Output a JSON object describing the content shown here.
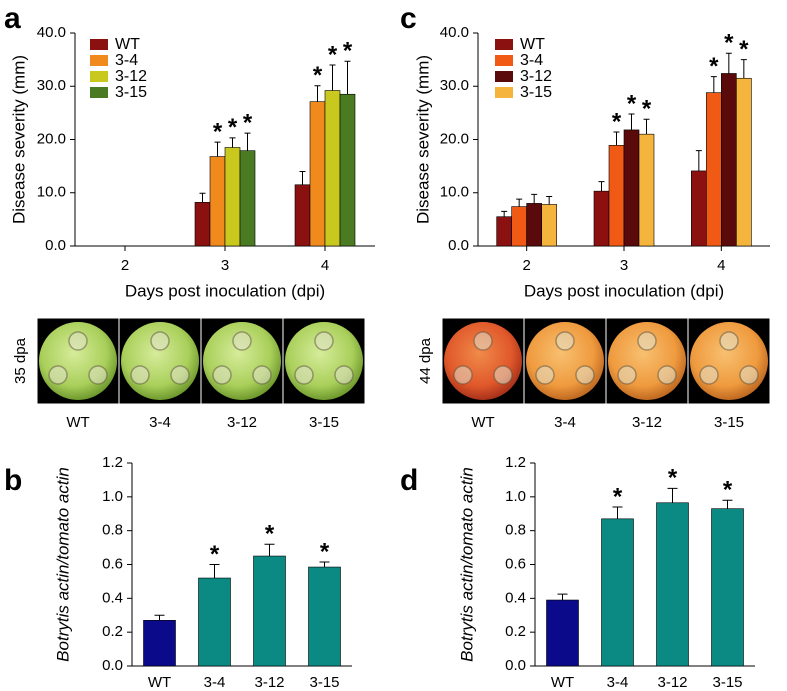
{
  "chart_data": [
    {
      "type": "grouped_bar",
      "panel_label": "a",
      "y_label": "Disease severity (mm)",
      "x_label": "Days post inoculation (dpi)",
      "categories": [
        "2",
        "3",
        "4"
      ],
      "ylim": [
        0,
        40
      ],
      "yticks": [
        {
          "value": 0,
          "label": "0.0"
        },
        {
          "value": 10,
          "label": "10.0"
        },
        {
          "value": 20,
          "label": "20.0"
        },
        {
          "value": 30,
          "label": "30.0"
        },
        {
          "value": 40,
          "label": "40.0"
        }
      ],
      "series": [
        {
          "name": "WT",
          "color": "#8b1010",
          "values": [
            null,
            8.2,
            11.5
          ],
          "errors": [
            null,
            1.7,
            2.5
          ]
        },
        {
          "name": "3-4",
          "color": "#f08a1c",
          "values": [
            null,
            16.8,
            27.1
          ],
          "errors": [
            null,
            2.7,
            3.0
          ],
          "significance": [
            null,
            "*",
            "*"
          ]
        },
        {
          "name": "3-12",
          "color": "#c8c81e",
          "values": [
            null,
            18.5,
            29.2
          ],
          "errors": [
            null,
            1.8,
            4.8
          ],
          "significance": [
            null,
            "*",
            "*"
          ]
        },
        {
          "name": "3-15",
          "color": "#4a7a22",
          "values": [
            null,
            17.9,
            28.5
          ],
          "errors": [
            null,
            3.3,
            6.2
          ],
          "significance": [
            null,
            "*",
            "*"
          ]
        }
      ]
    },
    {
      "type": "bar",
      "panel_label": "b",
      "y_label": "Botrytis actin/tomato actin",
      "categories": [
        "WT",
        "3-4",
        "3-12",
        "3-15"
      ],
      "values": [
        0.27,
        0.52,
        0.65,
        0.585
      ],
      "errors": [
        0.03,
        0.08,
        0.07,
        0.03
      ],
      "colors": [
        "#0a0a8a",
        "#0a8a82",
        "#0a8a82",
        "#0a8a82"
      ],
      "significance": [
        null,
        "*",
        "*",
        "*"
      ],
      "ylim": [
        0,
        1.2
      ],
      "yticks": [
        {
          "value": 0,
          "label": "0.0"
        },
        0.2,
        0.4,
        0.6,
        0.8,
        {
          "value": 1,
          "label": "1.0"
        },
        1.2
      ]
    },
    {
      "type": "grouped_bar",
      "panel_label": "c",
      "y_label": "Disease severity (mm)",
      "x_label": "Days post inoculation (dpi)",
      "categories": [
        "2",
        "3",
        "4"
      ],
      "ylim": [
        0,
        40
      ],
      "yticks": [
        {
          "value": 0,
          "label": "0.0"
        },
        {
          "value": 10,
          "label": "10.0"
        },
        {
          "value": 20,
          "label": "20.0"
        },
        {
          "value": 30,
          "label": "30.0"
        },
        {
          "value": 40,
          "label": "40.0"
        }
      ],
      "series": [
        {
          "name": "WT",
          "color": "#8b1010",
          "values": [
            5.5,
            10.3,
            14.1
          ],
          "errors": [
            1.0,
            1.8,
            3.8
          ]
        },
        {
          "name": "3-4",
          "color": "#f05a14",
          "values": [
            7.4,
            18.9,
            28.8
          ],
          "errors": [
            1.4,
            2.5,
            3.0
          ],
          "significance": [
            null,
            "*",
            "*"
          ]
        },
        {
          "name": "3-12",
          "color": "#5a0a0a",
          "values": [
            8.0,
            21.8,
            32.4
          ],
          "errors": [
            1.7,
            3.0,
            3.8
          ],
          "significance": [
            null,
            "*",
            "*"
          ]
        },
        {
          "name": "3-15",
          "color": "#f5b43c",
          "values": [
            7.8,
            21.0,
            31.5
          ],
          "errors": [
            1.5,
            2.8,
            3.5
          ],
          "significance": [
            null,
            "*",
            "*"
          ]
        }
      ]
    },
    {
      "type": "bar",
      "panel_label": "d",
      "y_label": "Botrytis actin/tomato actin",
      "categories": [
        "WT",
        "3-4",
        "3-12",
        "3-15"
      ],
      "values": [
        0.39,
        0.87,
        0.965,
        0.93
      ],
      "errors": [
        0.035,
        0.07,
        0.085,
        0.05
      ],
      "colors": [
        "#0a0a8a",
        "#0a8a82",
        "#0a8a82",
        "#0a8a82"
      ],
      "significance": [
        null,
        "*",
        "*",
        "*"
      ],
      "ylim": [
        0,
        1.2
      ],
      "yticks": [
        {
          "value": 0,
          "label": "0.0"
        },
        0.2,
        0.4,
        0.6,
        0.8,
        {
          "value": 1,
          "label": "1.0"
        },
        1.2
      ]
    }
  ],
  "photo_strips": [
    {
      "label": "35 dpa",
      "captions": [
        "WT",
        "3-4",
        "3-12",
        "3-15"
      ]
    },
    {
      "label": "44 dpa",
      "captions": [
        "WT",
        "3-4",
        "3-12",
        "3-15"
      ]
    }
  ]
}
